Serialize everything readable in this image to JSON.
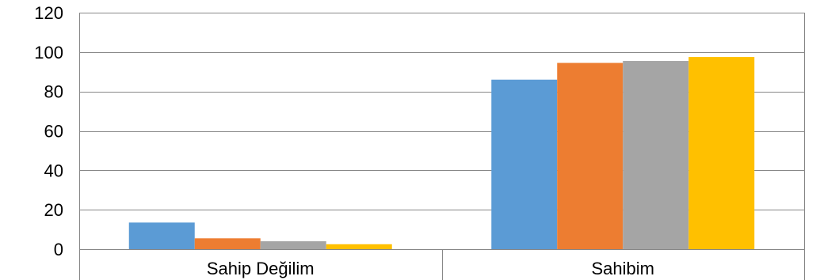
{
  "chart_data": {
    "type": "bar",
    "categories": [
      "Sahip Değilim",
      "Sahibim"
    ],
    "series": [
      {
        "values": [
          13.5,
          86
        ],
        "color": "#5B9BD5"
      },
      {
        "values": [
          5.5,
          94.5
        ],
        "color": "#ED7D31"
      },
      {
        "values": [
          4,
          95.5
        ],
        "color": "#A5A5A5"
      },
      {
        "values": [
          2.5,
          97.5
        ],
        "color": "#FFC000"
      }
    ],
    "yticks": [
      "0",
      "20",
      "40",
      "60",
      "80",
      "100",
      "120"
    ],
    "ylim": [
      0,
      120
    ],
    "grid": true,
    "gridline_color": "#878787",
    "title": "",
    "xlabel": "",
    "ylabel": ""
  }
}
